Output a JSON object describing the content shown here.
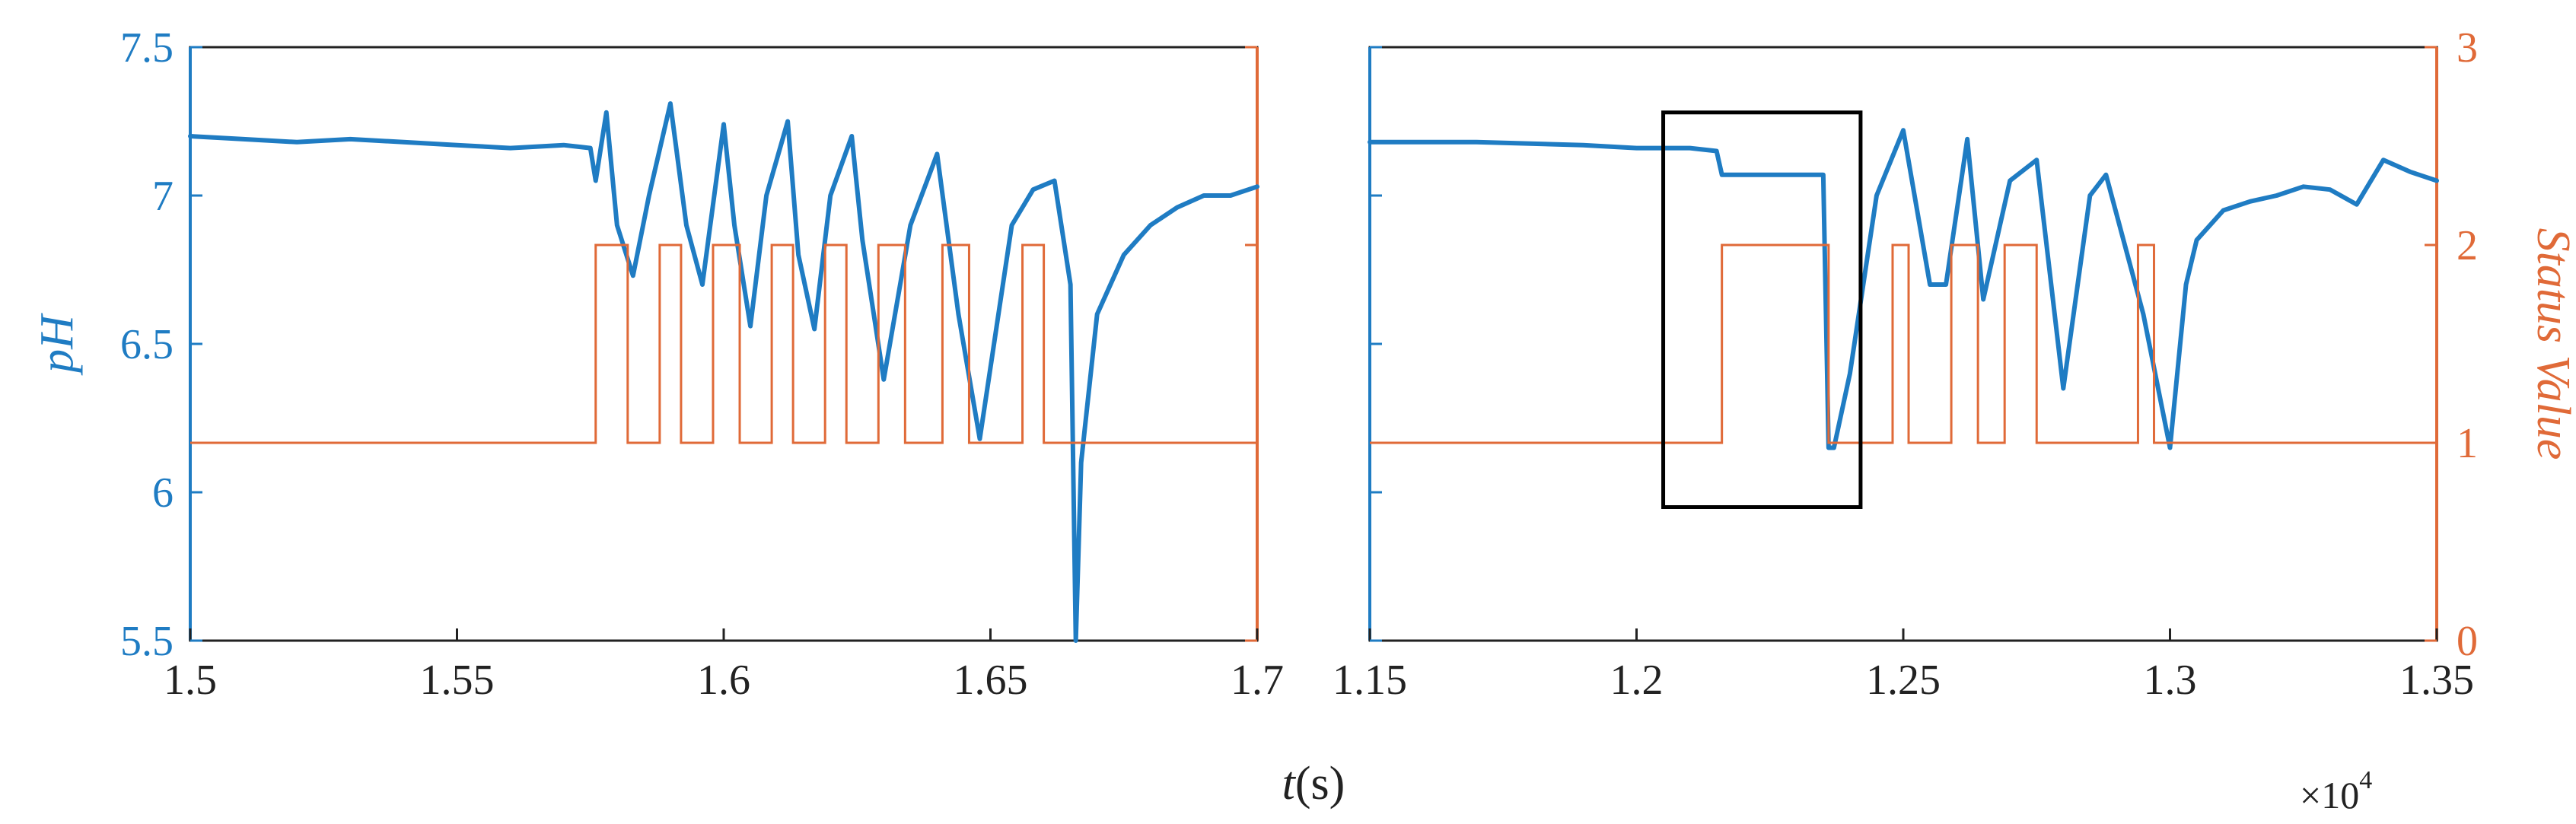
{
  "colors": {
    "ph": "#1f7cc3",
    "status": "#e06a38",
    "axis": "#222222",
    "box": "#000000"
  },
  "x_label": {
    "italic": "t",
    "rest": "(s)"
  },
  "x_multiplier": {
    "base": "×10",
    "exponent": "4"
  },
  "y_left_label": "pH",
  "y_right_label": "Status Value",
  "chart_data": [
    {
      "type": "line",
      "panel": "left",
      "xlabel": "t(s)",
      "ylabel": "pH",
      "y2label": "",
      "xlim": [
        15000,
        17000
      ],
      "ylim": [
        5.5,
        7.5
      ],
      "y2lim": [
        0,
        3
      ],
      "xticks": [
        "1.5",
        "1.55",
        "1.6",
        "1.65",
        "1.7"
      ],
      "yticks": [
        "5.5",
        "6",
        "6.5",
        "7",
        "7.5"
      ],
      "y2ticks": [],
      "grid": false,
      "series": [
        {
          "axis": "left",
          "x": [
            15000,
            15100,
            15200,
            15300,
            15400,
            15500,
            15600,
            15700,
            15750,
            15760,
            15780,
            15800,
            15830,
            15860,
            15900,
            15930,
            15960,
            16000,
            16020,
            16050,
            16080,
            16120,
            16140,
            16170,
            16200,
            16240,
            16260,
            16300,
            16350,
            16400,
            16440,
            16480,
            16540,
            16580,
            16620,
            16650,
            16660,
            16670,
            16700,
            16750,
            16800,
            16850,
            16900,
            16950,
            17000
          ],
          "y": [
            7.2,
            7.19,
            7.18,
            7.19,
            7.18,
            7.17,
            7.16,
            7.17,
            7.16,
            7.05,
            7.28,
            6.9,
            6.73,
            7.0,
            7.31,
            6.9,
            6.7,
            7.24,
            6.9,
            6.56,
            7.0,
            7.25,
            6.8,
            6.55,
            7.0,
            7.2,
            6.85,
            6.38,
            6.9,
            7.14,
            6.6,
            6.18,
            6.9,
            7.02,
            7.05,
            6.7,
            5.5,
            6.1,
            6.6,
            6.8,
            6.9,
            6.96,
            7.0,
            7.0,
            7.03
          ]
        },
        {
          "axis": "right",
          "step": true,
          "x": [
            15000,
            15760,
            15820,
            15880,
            15920,
            15980,
            16030,
            16090,
            16130,
            16190,
            16230,
            16290,
            16340,
            16410,
            16460,
            16560,
            16600,
            16650,
            17000
          ],
          "y": [
            1,
            2,
            1,
            2,
            1,
            2,
            1,
            2,
            1,
            2,
            1,
            2,
            1,
            2,
            1,
            2,
            1,
            1,
            1
          ]
        }
      ]
    },
    {
      "type": "line",
      "panel": "right",
      "xlabel": "t(s)",
      "ylabel": "",
      "y2label": "Status Value",
      "xlim": [
        11500,
        13500
      ],
      "ylim": [
        5.5,
        7.5
      ],
      "y2lim": [
        0,
        3
      ],
      "xticks": [
        "1.15",
        "1.2",
        "1.25",
        "1.3",
        "1.35"
      ],
      "yticks": [],
      "y2ticks": [
        "0",
        "1",
        "2",
        "3"
      ],
      "grid": false,
      "highlight_box": {
        "x": [
          12050,
          12420
        ],
        "y": [
          5.95,
          7.28
        ]
      },
      "series": [
        {
          "axis": "left",
          "x": [
            11500,
            11700,
            11900,
            12000,
            12100,
            12150,
            12160,
            12300,
            12350,
            12360,
            12370,
            12400,
            12450,
            12500,
            12550,
            12580,
            12620,
            12650,
            12700,
            12750,
            12800,
            12850,
            12880,
            12950,
            13000,
            13030,
            13050,
            13100,
            13150,
            13200,
            13250,
            13300,
            13350,
            13400,
            13450,
            13500
          ],
          "y": [
            7.18,
            7.18,
            7.17,
            7.16,
            7.16,
            7.15,
            7.07,
            7.07,
            7.07,
            6.15,
            6.15,
            6.4,
            7.0,
            7.22,
            6.7,
            6.7,
            7.19,
            6.65,
            7.05,
            7.12,
            6.35,
            7.0,
            7.07,
            6.6,
            6.15,
            6.7,
            6.85,
            6.95,
            6.98,
            7.0,
            7.03,
            7.02,
            6.97,
            7.12,
            7.08,
            7.05
          ]
        },
        {
          "axis": "right",
          "step": true,
          "x": [
            11500,
            12160,
            12360,
            12440,
            12480,
            12510,
            12590,
            12640,
            12690,
            12750,
            12800,
            12940,
            12970,
            13500
          ],
          "y": [
            1,
            2,
            1,
            1,
            2,
            1,
            2,
            1,
            2,
            1,
            1,
            2,
            1,
            1
          ]
        }
      ]
    }
  ]
}
